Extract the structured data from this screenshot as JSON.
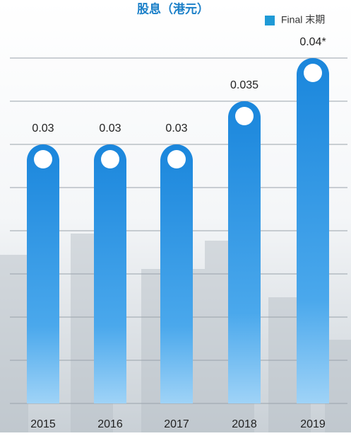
{
  "chart_data": {
    "type": "bar",
    "title": "股息（港元）",
    "categories": [
      "2015",
      "2016",
      "2017",
      "2018",
      "2019"
    ],
    "series": [
      {
        "name": "Final 末期",
        "color": "#1f8fe0",
        "values": [
          0.03,
          0.03,
          0.03,
          0.035,
          0.04
        ],
        "value_labels": [
          "0.03",
          "0.03",
          "0.03",
          "0.035",
          "0.04*"
        ]
      }
    ],
    "ylim": [
      0,
      0.04
    ],
    "yticks": [
      0,
      0.005,
      0.01,
      0.015,
      0.02,
      0.025,
      0.03,
      0.035,
      0.04
    ],
    "grid": true
  }
}
